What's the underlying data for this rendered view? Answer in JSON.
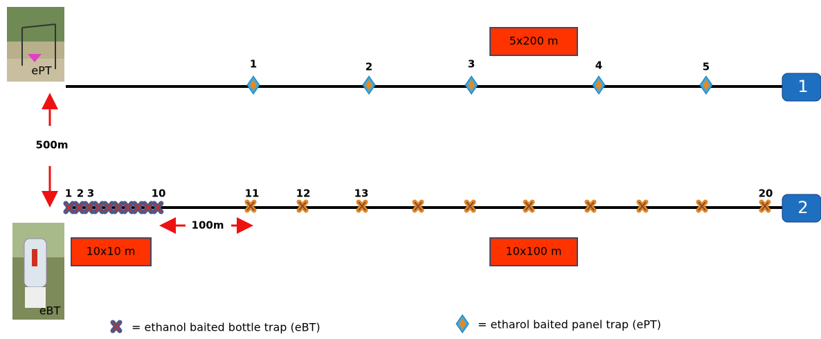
{
  "photo_top_label": "ePT",
  "photo_bottom_label": "eBT",
  "distance_between_lines": "500m",
  "line1": {
    "tag": "1",
    "box": "5x200 m",
    "trap_labels": [
      "1",
      "2",
      "3",
      "4",
      "5"
    ]
  },
  "line2": {
    "tag": "2",
    "box_left": "10x10 m",
    "box_right": "10x100 m",
    "spacing": "100m",
    "trap_labels": [
      "1",
      "2",
      "3",
      "10",
      "11",
      "12",
      "13",
      "20"
    ]
  },
  "legend": {
    "bottle": "= ethanol baited bottle trap  (eBT)",
    "panel": "= etharol baited panel trap  (ePT)"
  }
}
